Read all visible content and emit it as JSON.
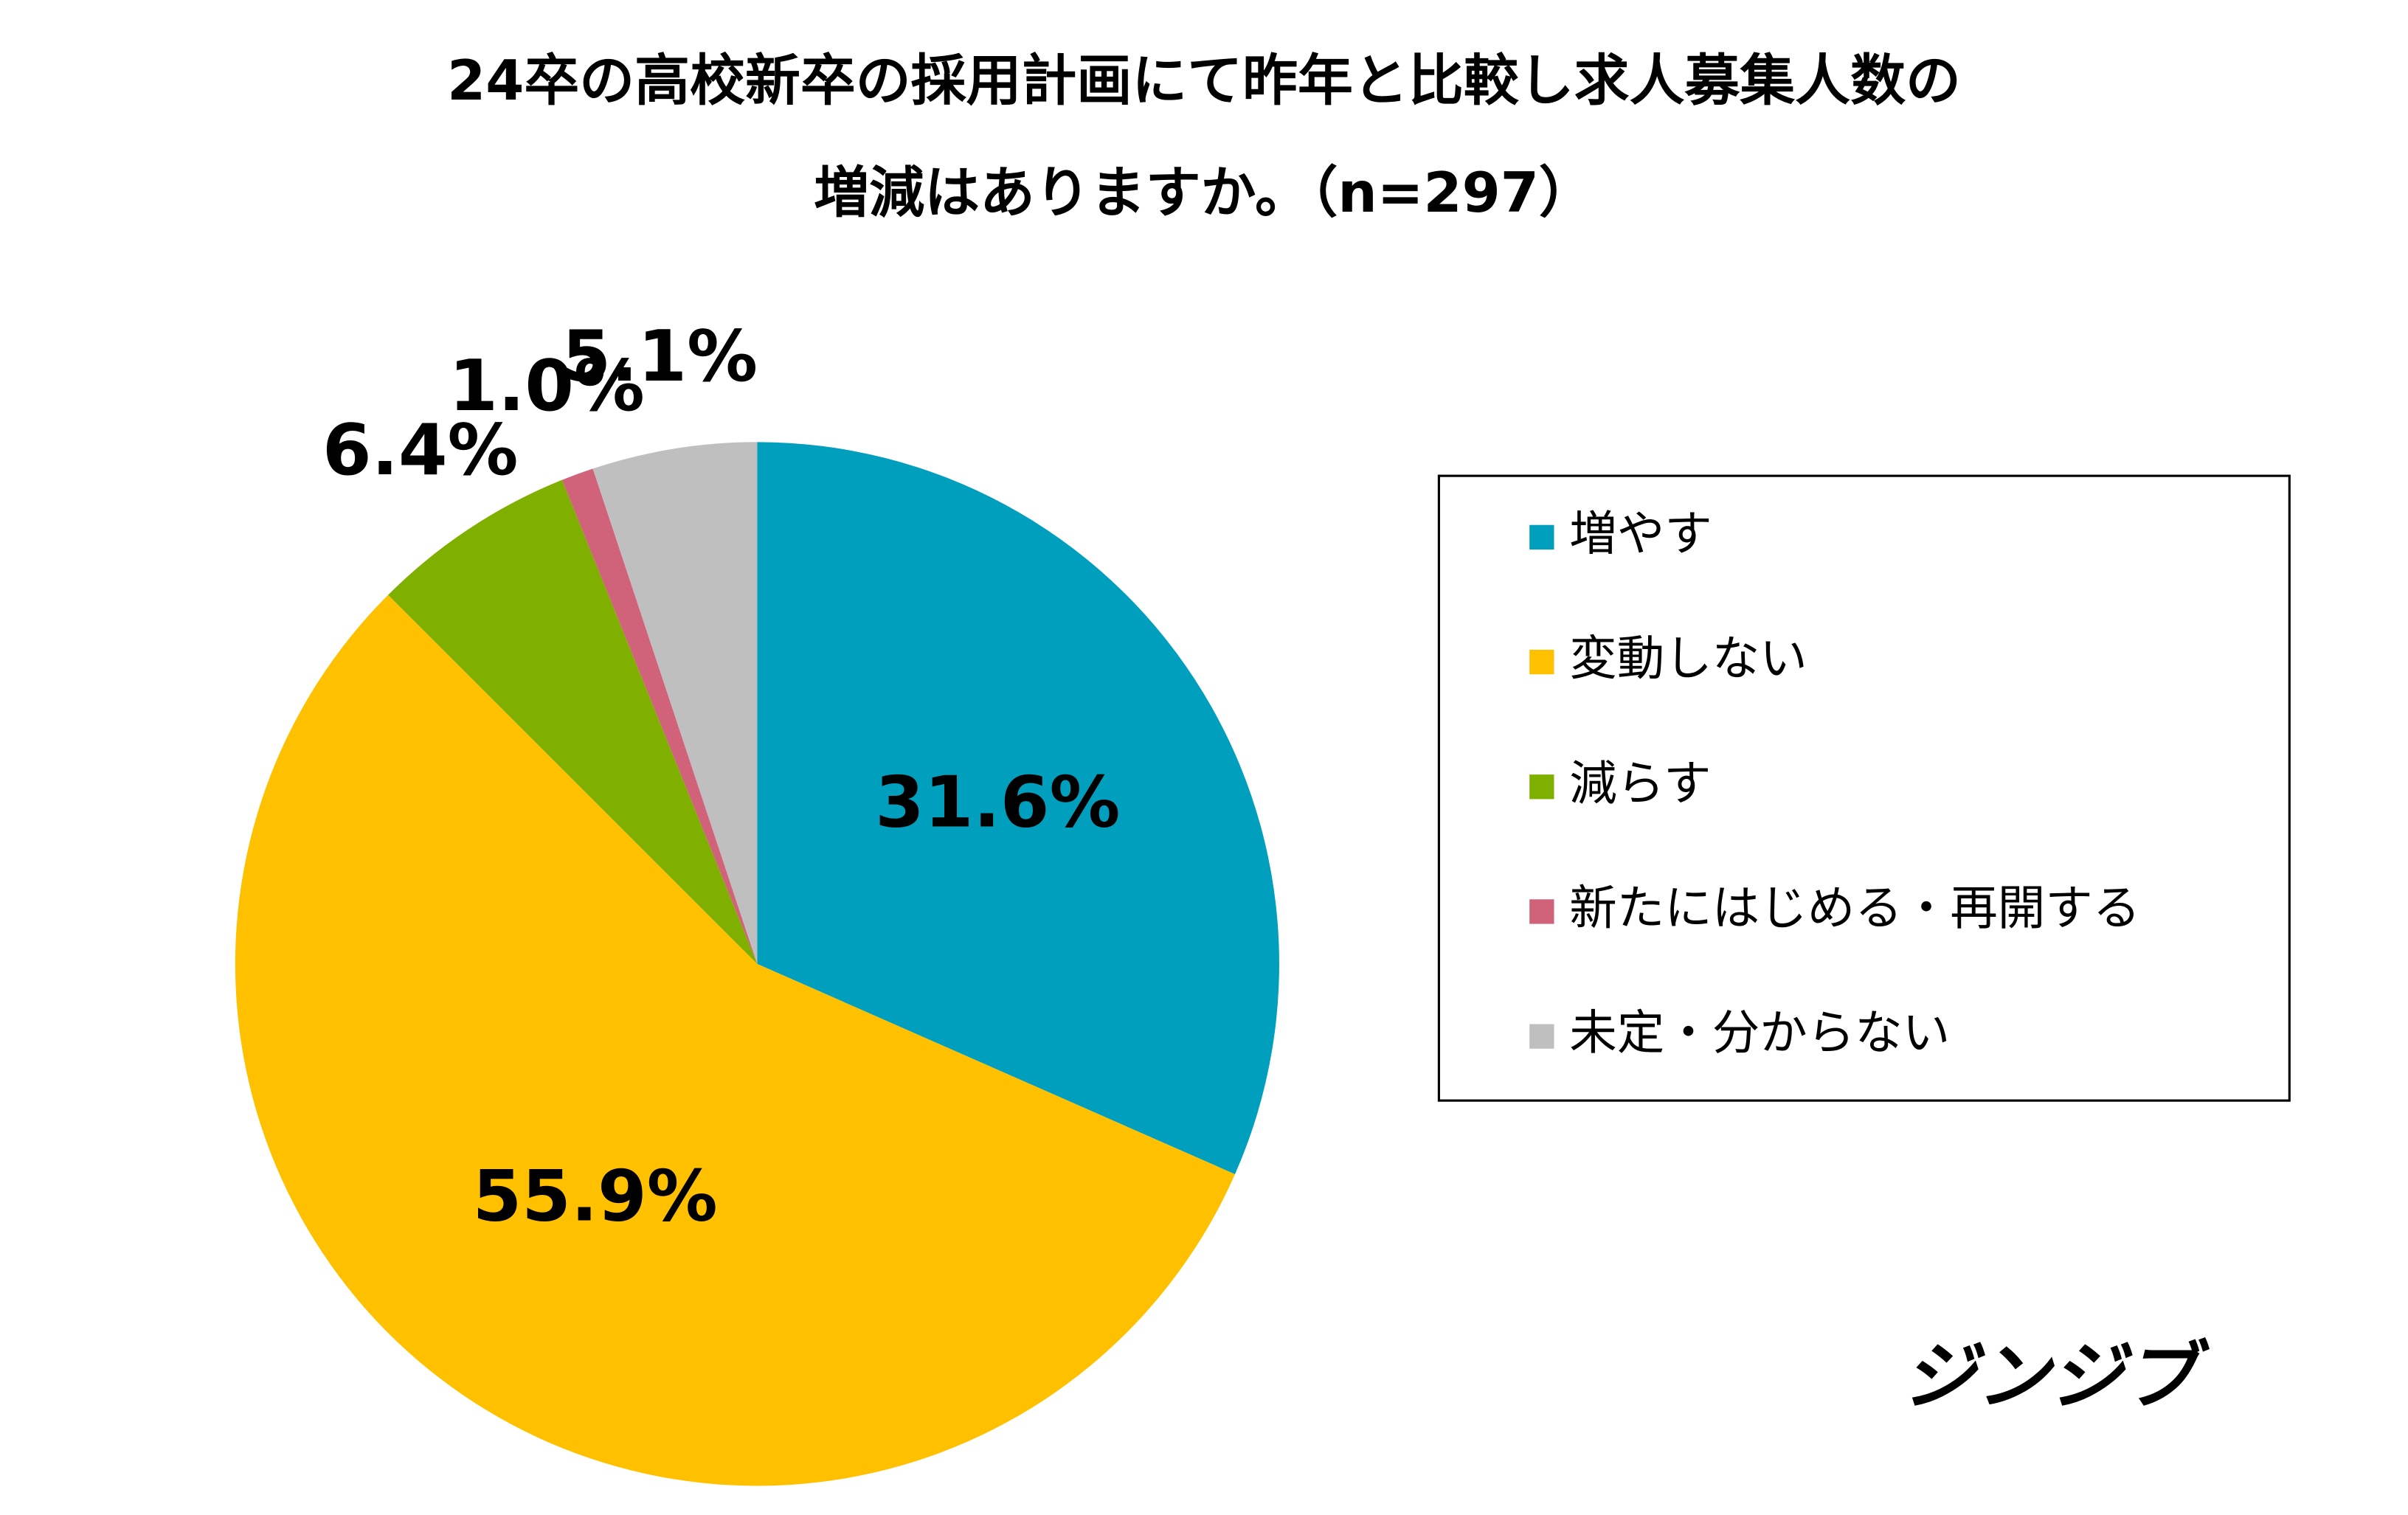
{
  "chart_data": {
    "type": "pie",
    "title": [
      "24卒の高校新卒の採用計画にて昨年と比較し求人募集人数の",
      "増減はありますか。（n=297）"
    ],
    "categories": [
      "増やす",
      "変動しない",
      "減らす",
      "新たにはじめる・再開する",
      "未定・分からない"
    ],
    "values": [
      31.6,
      55.9,
      6.4,
      1.0,
      5.1
    ],
    "value_labels": [
      "31.6%",
      "55.9%",
      "6.4%",
      "1.0%",
      "5.1%"
    ],
    "colors": [
      "#009fbd",
      "#ffc000",
      "#7fb000",
      "#d0627a",
      "#bfbfbf"
    ],
    "legend": "right",
    "logo": "ジンジブ"
  }
}
